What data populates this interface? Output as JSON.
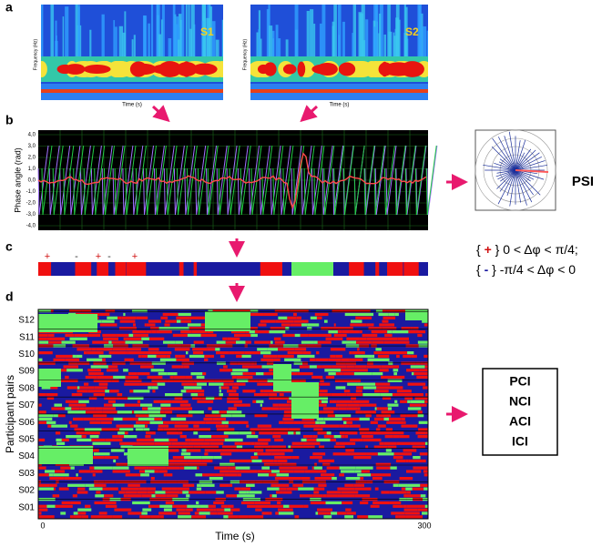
{
  "panel_a": {
    "label": "a",
    "spectrograms": [
      {
        "name": "S1",
        "y_label": "Frequency (Hz)",
        "x_label": "Time (s)"
      },
      {
        "name": "S2",
        "y_label": "Frequency (Hz)",
        "x_label": "Time (s)"
      }
    ]
  },
  "panel_b": {
    "label": "b",
    "y_label": "Phase angle (rad)",
    "y_ticks": [
      "4,0",
      "3,0",
      "2,0",
      "1,0",
      "0,0",
      "-1,0",
      "-2,0",
      "-3,0",
      "-4,0"
    ],
    "output": "PSI"
  },
  "panel_c": {
    "label": "c",
    "signs": [
      "+",
      "-",
      "+",
      "-",
      "+"
    ],
    "legend": [
      {
        "open": "{ ",
        "sign": "+",
        "close": " } 0 < Δφ < π/4;"
      },
      {
        "open": "{ ",
        "sign": "-",
        "close": " } -π/4 < Δφ < 0"
      }
    ]
  },
  "panel_d": {
    "label": "d",
    "y_label": "Participant pairs",
    "rows": [
      "S12",
      "S11",
      "S10",
      "S09",
      "S08",
      "S07",
      "S06",
      "S05",
      "S04",
      "S03",
      "S02",
      "S01"
    ],
    "x_ticks": [
      "0",
      "300"
    ],
    "x_label": "Time (s)",
    "indices": [
      "PCI",
      "NCI",
      "ACI",
      "ICI"
    ]
  }
}
